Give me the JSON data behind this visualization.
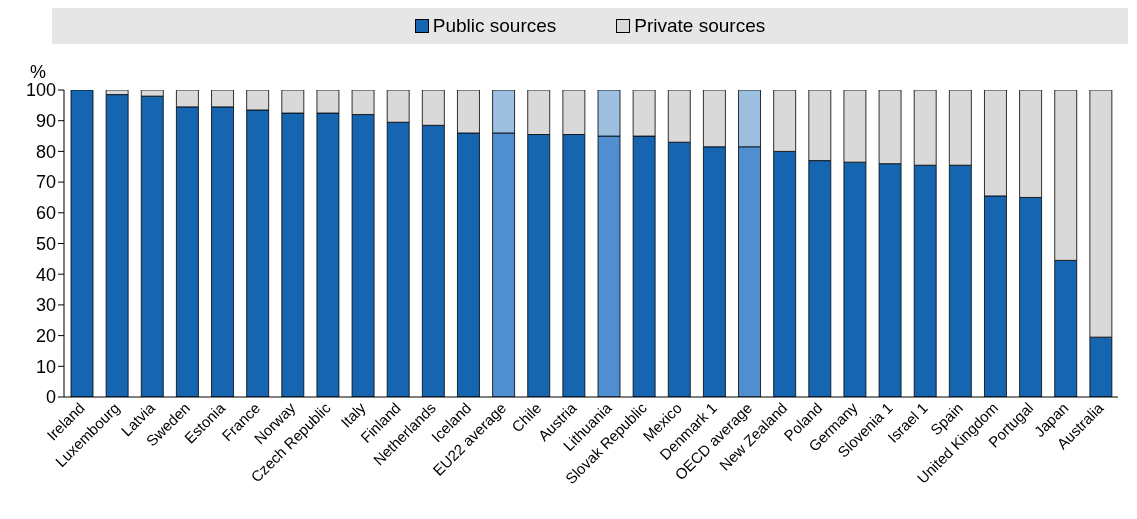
{
  "chart_data": {
    "type": "bar",
    "stacked": true,
    "ylabel": "%",
    "ylim": [
      0,
      100
    ],
    "yticks": [
      0,
      10,
      20,
      30,
      40,
      50,
      60,
      70,
      80,
      90,
      100
    ],
    "grid": false,
    "legend": "top",
    "categories": [
      "Ireland",
      "Luxembourg",
      "Latvia",
      "Sweden",
      "Estonia",
      "France",
      "Norway",
      "Czech Republic",
      "Italy",
      "Finland",
      "Netherlands",
      "Iceland",
      "EU22 average",
      "Chile",
      "Austria",
      "Lithuania",
      "Slovak Republic",
      "Mexico",
      "Denmark 1",
      "OECD average",
      "New Zealand",
      "Poland",
      "Germany",
      "Slovenia 1",
      "Israel 1",
      "Spain",
      "United Kingdom",
      "Portugal",
      "Japan",
      "Australia"
    ],
    "series": [
      {
        "name": "Public sources",
        "color": "#1565b0",
        "colors": [
          "#1565b0",
          "#1565b0",
          "#1565b0",
          "#1565b0",
          "#1565b0",
          "#1565b0",
          "#1565b0",
          "#1565b0",
          "#1565b0",
          "#1565b0",
          "#1565b0",
          "#1565b0",
          "#4f8fd0",
          "#1565b0",
          "#1565b0",
          "#4f8fd0",
          "#1565b0",
          "#1565b0",
          "#1565b0",
          "#4f8fd0",
          "#1565b0",
          "#1565b0",
          "#1565b0",
          "#1565b0",
          "#1565b0",
          "#1565b0",
          "#1565b0",
          "#1565b0",
          "#1565b0",
          "#1565b0"
        ],
        "values": [
          100,
          98.5,
          98,
          94.5,
          94.5,
          93.5,
          92.5,
          92.5,
          92,
          89.5,
          88.5,
          86,
          86,
          85.5,
          85.5,
          85,
          85,
          83,
          81.5,
          81.5,
          80,
          77,
          76.5,
          76,
          75.5,
          75.5,
          65.5,
          65,
          44.5,
          19.5
        ]
      },
      {
        "name": "Private sources",
        "color": "#d9d9d9",
        "colors": [
          "#d9d9d9",
          "#d9d9d9",
          "#d9d9d9",
          "#d9d9d9",
          "#d9d9d9",
          "#d9d9d9",
          "#d9d9d9",
          "#d9d9d9",
          "#d9d9d9",
          "#d9d9d9",
          "#d9d9d9",
          "#d9d9d9",
          "#9dbfe0",
          "#d9d9d9",
          "#d9d9d9",
          "#9dbfe0",
          "#d9d9d9",
          "#d9d9d9",
          "#d9d9d9",
          "#9dbfe0",
          "#d9d9d9",
          "#d9d9d9",
          "#d9d9d9",
          "#d9d9d9",
          "#d9d9d9",
          "#d9d9d9",
          "#d9d9d9",
          "#d9d9d9",
          "#d9d9d9",
          "#d9d9d9"
        ],
        "values": [
          null,
          1.5,
          2,
          5.5,
          5.5,
          6.5,
          7.5,
          7.5,
          8,
          10.5,
          11.5,
          14,
          14,
          14.5,
          14.5,
          15,
          15,
          17,
          18.5,
          18.5,
          20,
          23,
          23.5,
          24,
          24.5,
          24.5,
          34.5,
          35,
          55.5,
          80.5
        ]
      }
    ]
  }
}
